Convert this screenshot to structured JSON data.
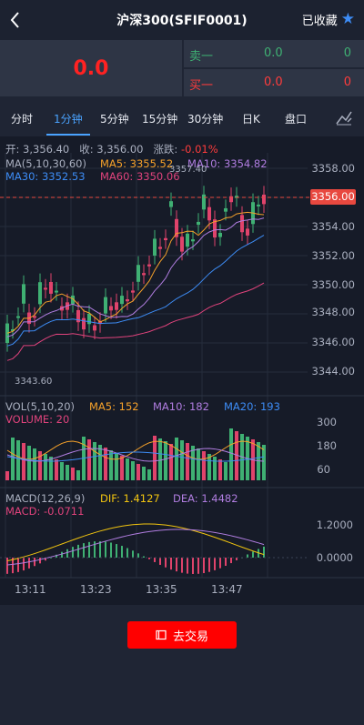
{
  "header": {
    "title": "沪深300(SFIF0001)",
    "favorite_label": "已收藏"
  },
  "quote": {
    "price": "0.0",
    "sell": {
      "label": "卖一",
      "price": "0.0",
      "volume": "0"
    },
    "buy": {
      "label": "买一",
      "price": "0.0",
      "volume": "0"
    }
  },
  "tabs": [
    "分时",
    "1分钟",
    "5分钟",
    "15分钟",
    "30分钟",
    "日K",
    "盘口"
  ],
  "info": {
    "open_label": "开:",
    "open": "3,356.40",
    "close_label": "收:",
    "close": "3,356.00",
    "change_label": "涨跌:",
    "change": "-0.01%"
  },
  "ma_legend": {
    "title": "MA(5,10,30,60)",
    "ma5": "MA5: 3355.52",
    "ma10": "MA10: 3354.82",
    "ma30": "MA30: 3352.53",
    "ma60": "MA60: 3350.06"
  },
  "vol_legend": {
    "title": "VOL(5,10,20)",
    "ma5": "MA5: 152",
    "ma10": "MA10: 182",
    "ma20": "MA20: 193",
    "volume": "VOLUME: 20"
  },
  "macd_legend": {
    "title": "MACD(12,26,9)",
    "dif": "DIF: 1.4127",
    "dea": "DEA: 1.4482",
    "macd": "MACD: -0.0711"
  },
  "price_axis": [
    "3358.00",
    "3356.00",
    "3354.00",
    "3352.00",
    "3350.00",
    "3348.00",
    "3346.00",
    "3344.00"
  ],
  "current_price_tag": "3356.00",
  "high_marker": "3357.40",
  "low_marker": "3343.60",
  "volume_axis": [
    "300",
    "180",
    "60"
  ],
  "macd_axis": [
    "1.2000",
    "0.0000"
  ],
  "time_axis": [
    "13:11",
    "13:23",
    "13:35",
    "13:47"
  ],
  "trade_button": "去交易",
  "colors": {
    "up": "#3fb073",
    "down": "#e0436b",
    "accent": "#4aa3ff",
    "button": "#ff0000"
  }
}
